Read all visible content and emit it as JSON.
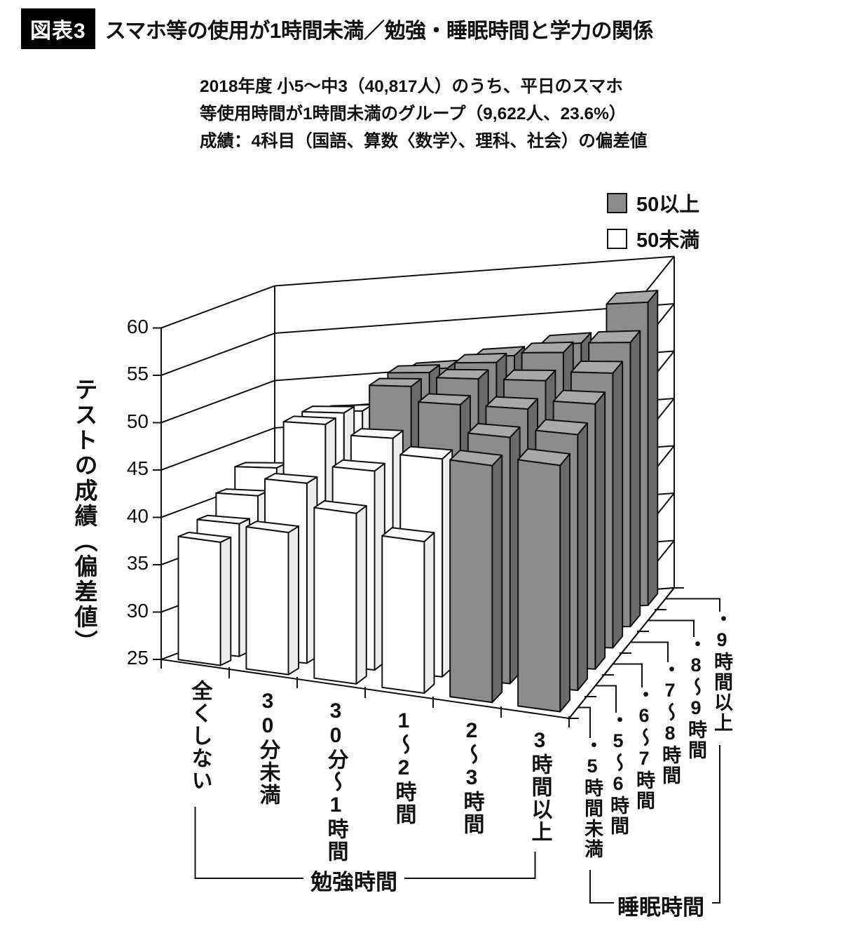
{
  "header": {
    "tag": "図表3",
    "title": "スマホ等の使用が1時間未満／勉強・睡眠時間と学力の関係"
  },
  "subtitle": {
    "line1": "2018年度 小5～中3（40,817人）のうち、平日のスマホ",
    "line2": "等使用時間が1時間未満のグループ（9,622人、23.6%）",
    "line3": "成績：4科目（国語、算数〈数学〉、理科、社会）の偏差値"
  },
  "legend": {
    "items": [
      {
        "label": "50以上",
        "color": "#8c8c8c"
      },
      {
        "label": "50未満",
        "color": "#ffffff"
      }
    ]
  },
  "chart_data": {
    "type": "bar",
    "projection": "3d",
    "title": "スマホ等の使用が1時間未満／勉強・睡眠時間と学力の関係",
    "ylabel": "テストの成績（偏差値）",
    "xlabel": "勉強時間",
    "zlabel": "睡眠時間",
    "ylim": [
      25,
      60
    ],
    "yticks": [
      25,
      30,
      35,
      40,
      45,
      50,
      55,
      60
    ],
    "categories": [
      "全くしない",
      "30分未満",
      "30分～1時間",
      "1～2時間",
      "2～3時間",
      "3時間以上"
    ],
    "series": [
      {
        "name": "5時間未満",
        "values": [
          38,
          40,
          43,
          41,
          50,
          51
        ]
      },
      {
        "name": "5～6時間",
        "values": [
          39,
          44,
          46,
          48,
          51,
          52
        ]
      },
      {
        "name": "6～7時間",
        "values": [
          41,
          49,
          48,
          52,
          52,
          53
        ]
      },
      {
        "name": "7～8時間",
        "values": [
          43,
          49,
          52,
          53,
          53,
          54
        ]
      },
      {
        "name": "8～9時間",
        "values": [
          42,
          48,
          52,
          53,
          54,
          55
        ]
      },
      {
        "name": "9時間以上",
        "values": [
          40,
          47,
          51,
          52,
          53,
          57
        ]
      }
    ],
    "threshold": 50,
    "colors": {
      "above": "#8c8c8c",
      "below": "#ffffff"
    },
    "marker": "・"
  }
}
